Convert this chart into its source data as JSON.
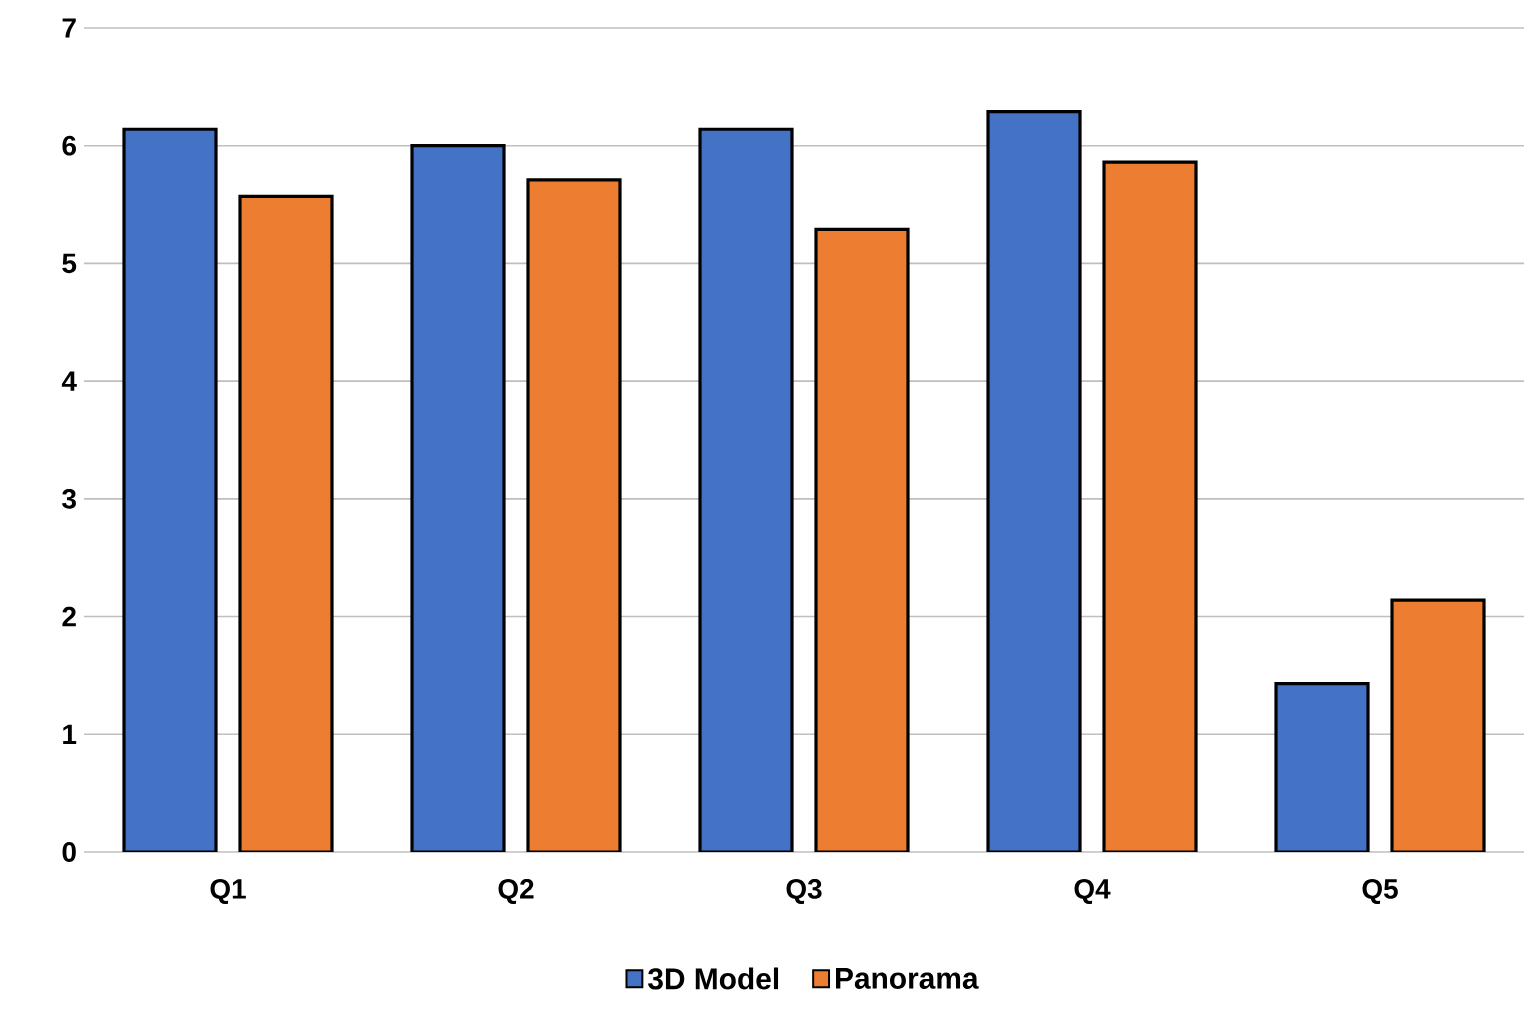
{
  "chart_data": {
    "type": "bar",
    "categories": [
      "Q1",
      "Q2",
      "Q3",
      "Q4",
      "Q5"
    ],
    "series": [
      {
        "name": "3D Model",
        "color": "#4472c4",
        "values": [
          6.14,
          6.0,
          6.14,
          6.29,
          1.43
        ]
      },
      {
        "name": "Panorama",
        "color": "#ed7d31",
        "values": [
          5.57,
          5.71,
          5.29,
          5.86,
          2.14
        ]
      }
    ],
    "ylim": [
      0,
      7
    ],
    "yticks": [
      0,
      1,
      2,
      3,
      4,
      5,
      6,
      7
    ],
    "grid": "y",
    "legend": "bottom"
  }
}
